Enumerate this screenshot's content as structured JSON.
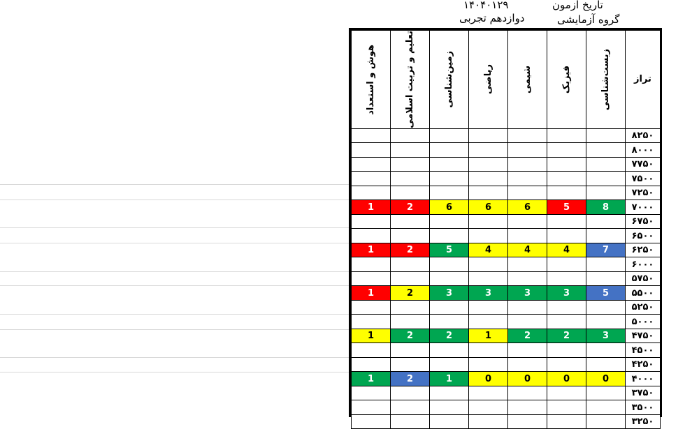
{
  "header": {
    "exam_date_label": "تاریخ آزمون",
    "exam_date_value": "۱۴۰۴۰۱۲۹",
    "group_label": "گروه آزمایشی",
    "group_value": "دوازدهم تجربی"
  },
  "columns": [
    "هوش و استعداد",
    "تعلیم و تربیت اسلامی",
    "زمین‌شناسی",
    "ریاضی",
    "شیمی",
    "فیزیک",
    "زیست‌شناسی"
  ],
  "score_header": "تراز",
  "colors": {
    "red": "#ff0000",
    "yellow": "#ffff00",
    "green": "#00a651",
    "blue": "#4472c4"
  },
  "rows": [
    {
      "score": "۸۲۵۰",
      "cells": []
    },
    {
      "score": "۸۰۰۰",
      "cells": []
    },
    {
      "score": "۷۷۵۰",
      "cells": []
    },
    {
      "score": "۷۵۰۰",
      "cells": []
    },
    {
      "score": "۷۲۵۰",
      "cells": []
    },
    {
      "score": "۷۰۰۰",
      "cells": [
        {
          "v": "1",
          "c": "red"
        },
        {
          "v": "2",
          "c": "red"
        },
        {
          "v": "6",
          "c": "yellow"
        },
        {
          "v": "6",
          "c": "yellow"
        },
        {
          "v": "6",
          "c": "yellow"
        },
        {
          "v": "5",
          "c": "red"
        },
        {
          "v": "8",
          "c": "green"
        }
      ]
    },
    {
      "score": "۶۷۵۰",
      "cells": []
    },
    {
      "score": "۶۵۰۰",
      "cells": []
    },
    {
      "score": "۶۲۵۰",
      "cells": [
        {
          "v": "1",
          "c": "red"
        },
        {
          "v": "2",
          "c": "red"
        },
        {
          "v": "5",
          "c": "green"
        },
        {
          "v": "4",
          "c": "yellow"
        },
        {
          "v": "4",
          "c": "yellow"
        },
        {
          "v": "4",
          "c": "yellow"
        },
        {
          "v": "7",
          "c": "blue"
        }
      ]
    },
    {
      "score": "۶۰۰۰",
      "cells": []
    },
    {
      "score": "۵۷۵۰",
      "cells": []
    },
    {
      "score": "۵۵۰۰",
      "cells": [
        {
          "v": "1",
          "c": "red"
        },
        {
          "v": "2",
          "c": "yellow"
        },
        {
          "v": "3",
          "c": "green"
        },
        {
          "v": "3",
          "c": "green"
        },
        {
          "v": "3",
          "c": "green"
        },
        {
          "v": "3",
          "c": "green"
        },
        {
          "v": "5",
          "c": "blue"
        }
      ]
    },
    {
      "score": "۵۲۵۰",
      "cells": []
    },
    {
      "score": "۵۰۰۰",
      "cells": []
    },
    {
      "score": "۴۷۵۰",
      "cells": [
        {
          "v": "1",
          "c": "yellow"
        },
        {
          "v": "2",
          "c": "green"
        },
        {
          "v": "2",
          "c": "green"
        },
        {
          "v": "1",
          "c": "yellow"
        },
        {
          "v": "2",
          "c": "green"
        },
        {
          "v": "2",
          "c": "green"
        },
        {
          "v": "3",
          "c": "green"
        }
      ]
    },
    {
      "score": "۴۵۰۰",
      "cells": []
    },
    {
      "score": "۴۲۵۰",
      "cells": []
    },
    {
      "score": "۴۰۰۰",
      "cells": [
        {
          "v": "1",
          "c": "green"
        },
        {
          "v": "2",
          "c": "blue"
        },
        {
          "v": "1",
          "c": "green"
        },
        {
          "v": "0",
          "c": "yellow"
        },
        {
          "v": "0",
          "c": "yellow"
        },
        {
          "v": "0",
          "c": "yellow"
        },
        {
          "v": "0",
          "c": "yellow"
        }
      ]
    },
    {
      "score": "۳۷۵۰",
      "cells": []
    },
    {
      "score": "۳۵۰۰",
      "cells": []
    },
    {
      "score": "۳۲۵۰",
      "cells": []
    }
  ]
}
